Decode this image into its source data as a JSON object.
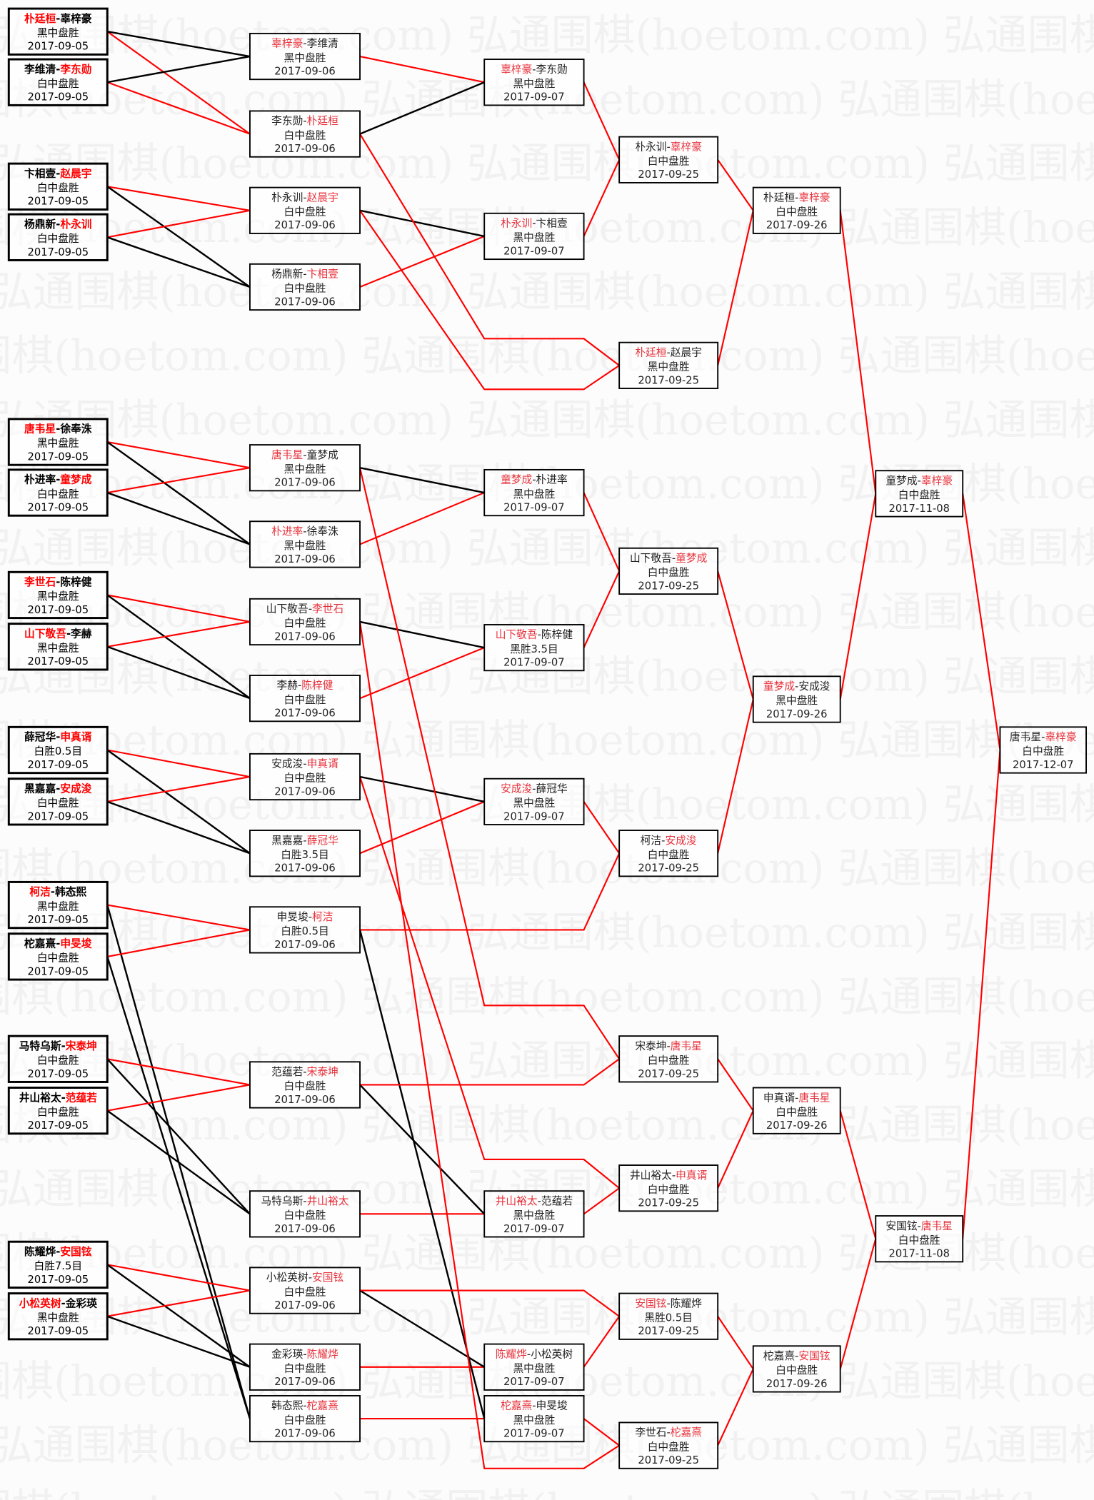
{
  "watermark": "弘通围棋(hoetom.com)",
  "colors": {
    "winner": "#ff0000",
    "winner_light": "#e8323c",
    "loser_line": "#000000",
    "text": "#000000"
  },
  "separator": "-",
  "rounds": [
    {
      "games": [
        {
          "p1": "朴廷桓",
          "p2": "辜梓豪",
          "winner": 1,
          "result": "黑中盘胜",
          "date": "2017-09-05"
        },
        {
          "p1": "李维清",
          "p2": "李东勋",
          "winner": 2,
          "result": "白中盘胜",
          "date": "2017-09-05"
        },
        {
          "p1": "卞相壹",
          "p2": "赵晨宇",
          "winner": 2,
          "result": "白中盘胜",
          "date": "2017-09-05"
        },
        {
          "p1": "杨鼎新",
          "p2": "朴永训",
          "winner": 2,
          "result": "白中盘胜",
          "date": "2017-09-05"
        },
        {
          "p1": "唐韦星",
          "p2": "徐奉洙",
          "winner": 1,
          "result": "黑中盘胜",
          "date": "2017-09-05"
        },
        {
          "p1": "朴进率",
          "p2": "童梦成",
          "winner": 2,
          "result": "白中盘胜",
          "date": "2017-09-05"
        },
        {
          "p1": "李世石",
          "p2": "陈梓健",
          "winner": 1,
          "result": "黑中盘胜",
          "date": "2017-09-05"
        },
        {
          "p1": "山下敬吾",
          "p2": "李赫",
          "winner": 1,
          "result": "黑中盘胜",
          "date": "2017-09-05"
        },
        {
          "p1": "薛冠华",
          "p2": "申真谞",
          "winner": 2,
          "result": "白胜0.5目",
          "date": "2017-09-05"
        },
        {
          "p1": "黑嘉嘉",
          "p2": "安成浚",
          "winner": 2,
          "result": "白中盘胜",
          "date": "2017-09-05"
        },
        {
          "p1": "柯洁",
          "p2": "韩态熙",
          "winner": 1,
          "result": "黑中盘胜",
          "date": "2017-09-05"
        },
        {
          "p1": "柁嘉熹",
          "p2": "申旻埈",
          "winner": 2,
          "result": "白中盘胜",
          "date": "2017-09-05"
        },
        {
          "p1": "马特乌斯",
          "p2": "宋泰坤",
          "winner": 2,
          "result": "白中盘胜",
          "date": "2017-09-05"
        },
        {
          "p1": "井山裕太",
          "p2": "范蕴若",
          "winner": 2,
          "result": "白中盘胜",
          "date": "2017-09-05"
        },
        {
          "p1": "陈耀烨",
          "p2": "安国铉",
          "winner": 2,
          "result": "白胜7.5目",
          "date": "2017-09-05"
        },
        {
          "p1": "小松英树",
          "p2": "金彩瑛",
          "winner": 1,
          "result": "黑中盘胜",
          "date": "2017-09-05"
        }
      ]
    },
    {
      "games": [
        {
          "p1": "辜梓豪",
          "p2": "李维清",
          "winner": 1,
          "result": "黑中盘胜",
          "date": "2017-09-06"
        },
        {
          "p1": "李东勋",
          "p2": "朴廷桓",
          "winner": 2,
          "result": "白中盘胜",
          "date": "2017-09-06"
        },
        {
          "p1": "朴永训",
          "p2": "赵晨宇",
          "winner": 2,
          "result": "白中盘胜",
          "date": "2017-09-06"
        },
        {
          "p1": "杨鼎新",
          "p2": "卞相壹",
          "winner": 2,
          "result": "白中盘胜",
          "date": "2017-09-06"
        },
        {
          "p1": "唐韦星",
          "p2": "童梦成",
          "winner": 1,
          "result": "黑中盘胜",
          "date": "2017-09-06"
        },
        {
          "p1": "朴进率",
          "p2": "徐奉洙",
          "winner": 1,
          "result": "黑中盘胜",
          "date": "2017-09-06"
        },
        {
          "p1": "山下敬吾",
          "p2": "李世石",
          "winner": 2,
          "result": "白中盘胜",
          "date": "2017-09-06"
        },
        {
          "p1": "李赫",
          "p2": "陈梓健",
          "winner": 2,
          "result": "白中盘胜",
          "date": "2017-09-06"
        },
        {
          "p1": "安成浚",
          "p2": "申真谞",
          "winner": 2,
          "result": "白中盘胜",
          "date": "2017-09-06"
        },
        {
          "p1": "黑嘉嘉",
          "p2": "薛冠华",
          "winner": 2,
          "result": "白胜3.5目",
          "date": "2017-09-06"
        },
        {
          "p1": "申旻埈",
          "p2": "柯洁",
          "winner": 2,
          "result": "白胜0.5目",
          "date": "2017-09-06"
        },
        {
          "p1": "范蕴若",
          "p2": "宋泰坤",
          "winner": 2,
          "result": "白中盘胜",
          "date": "2017-09-06"
        },
        {
          "p1": "马特乌斯",
          "p2": "井山裕太",
          "winner": 2,
          "result": "白中盘胜",
          "date": "2017-09-06"
        },
        {
          "p1": "小松英树",
          "p2": "安国铉",
          "winner": 2,
          "result": "白中盘胜",
          "date": "2017-09-06"
        },
        {
          "p1": "金彩瑛",
          "p2": "陈耀烨",
          "winner": 2,
          "result": "白中盘胜",
          "date": "2017-09-06"
        },
        {
          "p1": "韩态熙",
          "p2": "柁嘉熹",
          "winner": 2,
          "result": "白中盘胜",
          "date": "2017-09-06"
        }
      ]
    },
    {
      "games": [
        {
          "p1": "辜梓豪",
          "p2": "李东勋",
          "winner": 1,
          "result": "黑中盘胜",
          "date": "2017-09-07"
        },
        {
          "p1": "朴永训",
          "p2": "卞相壹",
          "winner": 1,
          "result": "黑中盘胜",
          "date": "2017-09-07"
        },
        {
          "p1": "童梦成",
          "p2": "朴进率",
          "winner": 1,
          "result": "黑中盘胜",
          "date": "2017-09-07"
        },
        {
          "p1": "山下敬吾",
          "p2": "陈梓健",
          "winner": 1,
          "result": "黑胜3.5目",
          "date": "2017-09-07"
        },
        {
          "p1": "安成浚",
          "p2": "薛冠华",
          "winner": 1,
          "result": "黑中盘胜",
          "date": "2017-09-07"
        },
        {
          "p1": "井山裕太",
          "p2": "范蕴若",
          "winner": 1,
          "result": "黑中盘胜",
          "date": "2017-09-07"
        },
        {
          "p1": "陈耀烨",
          "p2": "小松英树",
          "winner": 1,
          "result": "黑中盘胜",
          "date": "2017-09-07"
        },
        {
          "p1": "柁嘉熹",
          "p2": "申旻埈",
          "winner": 1,
          "result": "黑中盘胜",
          "date": "2017-09-07"
        }
      ]
    },
    {
      "games": [
        {
          "p1": "朴永训",
          "p2": "辜梓豪",
          "winner": 2,
          "result": "白中盘胜",
          "date": "2017-09-25"
        },
        {
          "p1": "朴廷桓",
          "p2": "赵晨宇",
          "winner": 1,
          "result": "黑中盘胜",
          "date": "2017-09-25"
        },
        {
          "p1": "山下敬吾",
          "p2": "童梦成",
          "winner": 2,
          "result": "白中盘胜",
          "date": "2017-09-25"
        },
        {
          "p1": "柯洁",
          "p2": "安成浚",
          "winner": 2,
          "result": "白中盘胜",
          "date": "2017-09-25"
        },
        {
          "p1": "宋泰坤",
          "p2": "唐韦星",
          "winner": 2,
          "result": "白中盘胜",
          "date": "2017-09-25"
        },
        {
          "p1": "井山裕太",
          "p2": "申真谞",
          "winner": 2,
          "result": "白中盘胜",
          "date": "2017-09-25"
        },
        {
          "p1": "安国铉",
          "p2": "陈耀烨",
          "winner": 1,
          "result": "黑胜0.5目",
          "date": "2017-09-25"
        },
        {
          "p1": "李世石",
          "p2": "柁嘉熹",
          "winner": 2,
          "result": "白中盘胜",
          "date": "2017-09-25"
        }
      ]
    },
    {
      "games": [
        {
          "p1": "朴廷桓",
          "p2": "辜梓豪",
          "winner": 2,
          "result": "白中盘胜",
          "date": "2017-09-26"
        },
        {
          "p1": "童梦成",
          "p2": "安成浚",
          "winner": 1,
          "result": "黑中盘胜",
          "date": "2017-09-26"
        },
        {
          "p1": "申真谞",
          "p2": "唐韦星",
          "winner": 2,
          "result": "白中盘胜",
          "date": "2017-09-26"
        },
        {
          "p1": "柁嘉熹",
          "p2": "安国铉",
          "winner": 2,
          "result": "白中盘胜",
          "date": "2017-09-26"
        }
      ]
    },
    {
      "games": [
        {
          "p1": "童梦成",
          "p2": "辜梓豪",
          "winner": 2,
          "result": "白中盘胜",
          "date": "2017-11-08"
        },
        {
          "p1": "安国铉",
          "p2": "唐韦星",
          "winner": 2,
          "result": "白中盘胜",
          "date": "2017-11-08"
        }
      ]
    },
    {
      "games": [
        {
          "p1": "唐韦星",
          "p2": "辜梓豪",
          "winner": 2,
          "result": "白中盘胜",
          "date": "2017-12-07"
        }
      ]
    }
  ]
}
